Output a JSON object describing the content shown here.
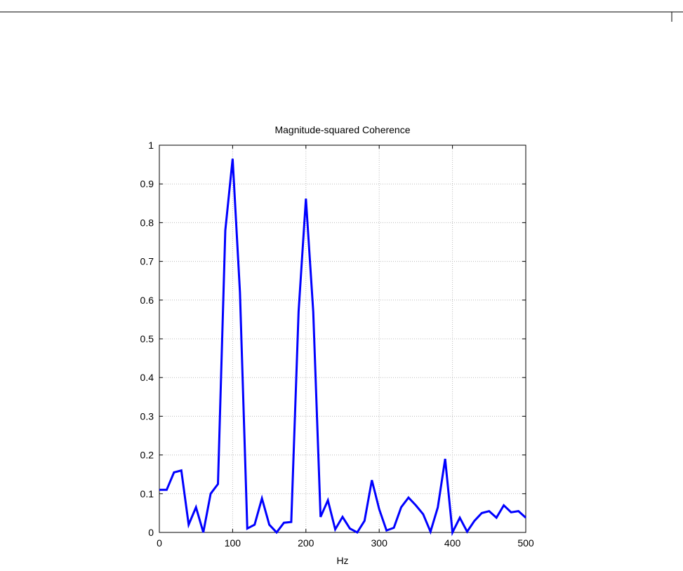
{
  "chart_data": {
    "type": "line",
    "title": "Magnitude-squared Coherence",
    "xlabel": "Hz",
    "x": [
      0,
      10,
      20,
      30,
      40,
      50,
      60,
      70,
      80,
      90,
      100,
      110,
      120,
      130,
      140,
      150,
      160,
      170,
      180,
      190,
      200,
      210,
      220,
      230,
      240,
      250,
      260,
      270,
      280,
      290,
      300,
      310,
      320,
      330,
      340,
      350,
      360,
      370,
      380,
      390,
      400,
      410,
      420,
      430,
      440,
      450,
      460,
      470,
      480,
      490,
      500
    ],
    "series": [
      {
        "color": "#0000ff",
        "values": [
          0.11,
          0.11,
          0.155,
          0.16,
          0.02,
          0.065,
          0.0,
          0.1,
          0.125,
          0.78,
          0.965,
          0.62,
          0.01,
          0.02,
          0.088,
          0.02,
          0.0,
          0.025,
          0.027,
          0.57,
          0.862,
          0.57,
          0.04,
          0.083,
          0.008,
          0.04,
          0.01,
          0.0,
          0.03,
          0.135,
          0.06,
          0.005,
          0.012,
          0.065,
          0.09,
          0.07,
          0.047,
          0.002,
          0.065,
          0.19,
          0.0,
          0.038,
          0.002,
          0.03,
          0.05,
          0.055,
          0.038,
          0.07,
          0.052,
          0.055,
          0.038
        ]
      }
    ],
    "xlim": [
      0,
      500
    ],
    "ylim": [
      0,
      1
    ],
    "xticks": [
      0,
      100,
      200,
      300,
      400,
      500
    ],
    "yticks": [
      0,
      0.1,
      0.2,
      0.3,
      0.4,
      0.5,
      0.6,
      0.7,
      0.8,
      0.9,
      1
    ],
    "grid": true
  }
}
